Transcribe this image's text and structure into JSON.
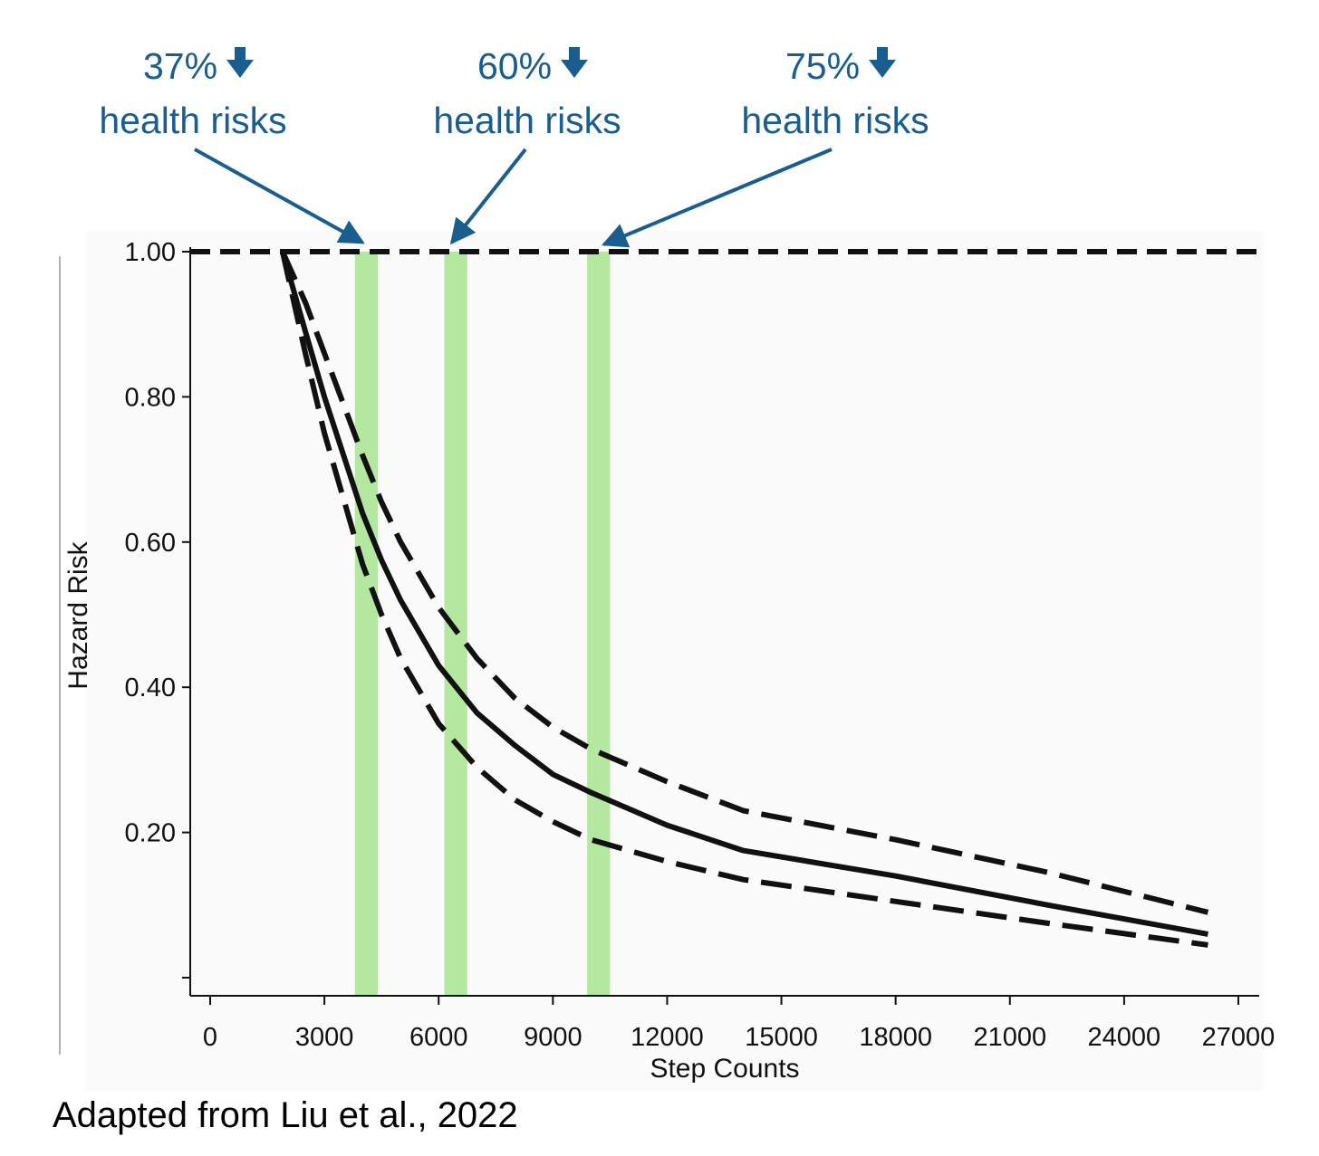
{
  "chart_data": {
    "type": "line",
    "title": "",
    "xlabel": "Step Counts",
    "ylabel": "Hazard Risk",
    "xlim": [
      -1000,
      27000
    ],
    "ylim": [
      0,
      1.02
    ],
    "x_ticks": [
      0,
      3000,
      6000,
      9000,
      12000,
      15000,
      18000,
      21000,
      24000,
      27000
    ],
    "y_ticks": [
      0.2,
      0.4,
      0.6,
      0.8,
      1.0
    ],
    "y_tick_labels": [
      "0.20",
      "0.40",
      "0.60",
      "0.80",
      "1.00"
    ],
    "reference_line": {
      "y": 1.0,
      "style": "dashed"
    },
    "series": [
      {
        "style": "solid",
        "x": [
          1900,
          2500,
          3000,
          3500,
          4000,
          4500,
          5000,
          6000,
          7000,
          8000,
          9000,
          10000,
          12000,
          14000,
          18000,
          22000,
          26200
        ],
        "y": [
          1.0,
          0.89,
          0.8,
          0.72,
          0.64,
          0.575,
          0.52,
          0.43,
          0.365,
          0.32,
          0.28,
          0.255,
          0.21,
          0.175,
          0.14,
          0.1,
          0.06
        ]
      },
      {
        "style": "dashed",
        "x": [
          1900,
          2500,
          3000,
          3500,
          4000,
          4500,
          5000,
          6000,
          7000,
          8000,
          9000,
          10000,
          12000,
          14000,
          18000,
          22000,
          26200
        ],
        "y": [
          1.0,
          0.93,
          0.86,
          0.79,
          0.72,
          0.655,
          0.6,
          0.51,
          0.44,
          0.385,
          0.345,
          0.315,
          0.27,
          0.23,
          0.19,
          0.145,
          0.09
        ]
      },
      {
        "style": "dashed",
        "x": [
          1900,
          2500,
          3000,
          3500,
          4000,
          4500,
          5000,
          6000,
          7000,
          8000,
          9000,
          10000,
          12000,
          14000,
          18000,
          22000,
          26200
        ],
        "y": [
          1.0,
          0.86,
          0.75,
          0.66,
          0.57,
          0.5,
          0.44,
          0.35,
          0.29,
          0.245,
          0.215,
          0.19,
          0.16,
          0.135,
          0.105,
          0.075,
          0.045
        ]
      }
    ],
    "highlight_bands": [
      {
        "x0": 3800,
        "x1": 4400,
        "color": "#b4e8a0"
      },
      {
        "x0": 6150,
        "x1": 6750,
        "color": "#b4e8a0"
      },
      {
        "x0": 9900,
        "x1": 10500,
        "color": "#b4e8a0"
      }
    ],
    "annotations": [
      {
        "percent": "37%",
        "text": "health risks",
        "target_x": 4100
      },
      {
        "percent": "60%",
        "text": "health risks",
        "target_x": 6200
      },
      {
        "percent": "75%",
        "text": "health risks",
        "target_x": 10100
      }
    ],
    "colors": {
      "annotation": "#1a5d8f",
      "line": "#111111",
      "band": "#b4e8a0"
    }
  },
  "credit": "Adapted from Liu et al., 2022"
}
